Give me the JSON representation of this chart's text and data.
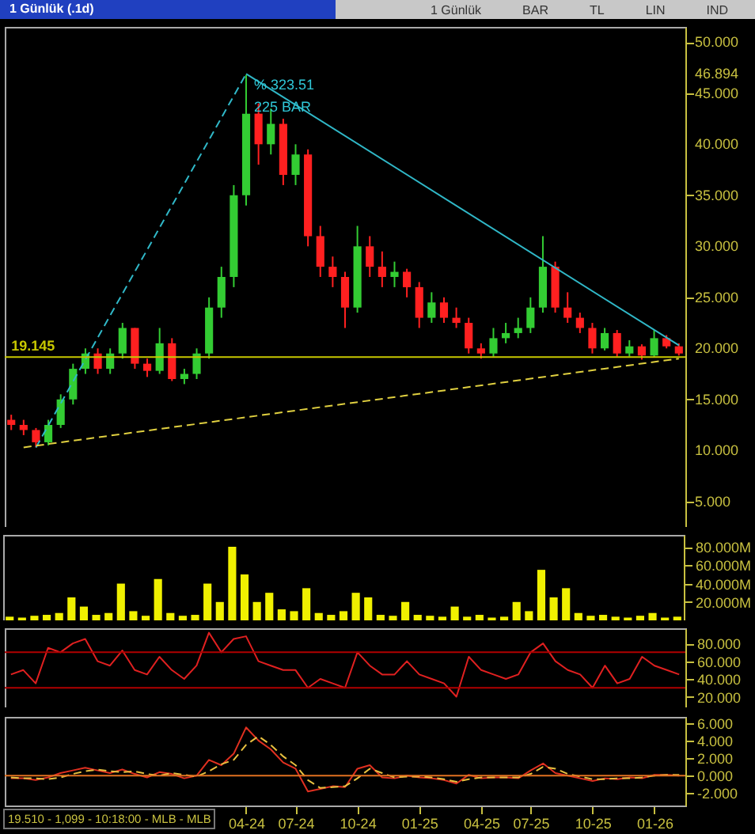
{
  "chart_data": [
    {
      "type": "candlestick",
      "title": "1 Günlük (.1d)",
      "tick_labels": "y",
      "categories": [
        null,
        null,
        null,
        null,
        null,
        null,
        null,
        null,
        null,
        null,
        null,
        null,
        null,
        null,
        null,
        null,
        null,
        null,
        null,
        null,
        null,
        null,
        null,
        null,
        null,
        null,
        null,
        null,
        null,
        null,
        null,
        null,
        null,
        null,
        null,
        null,
        null,
        null,
        null,
        null,
        null,
        null,
        null,
        null,
        null,
        null,
        null,
        null,
        null,
        null,
        null,
        null,
        null,
        null,
        null
      ],
      "ohlc": [
        [
          13,
          13.5,
          12,
          12.5
        ],
        [
          12.5,
          13,
          11.5,
          12
        ],
        [
          12,
          12.2,
          10.3,
          10.8
        ],
        [
          10.8,
          13,
          10.5,
          12.5
        ],
        [
          12.5,
          15.5,
          12.2,
          15
        ],
        [
          15,
          18.5,
          14.5,
          18
        ],
        [
          18,
          20,
          17.5,
          19.5
        ],
        [
          19.5,
          20,
          17.5,
          18
        ],
        [
          18,
          20,
          17.5,
          19.5
        ],
        [
          19.5,
          22.5,
          19,
          22
        ],
        [
          22,
          22,
          18,
          18.5
        ],
        [
          18.5,
          19,
          17.2,
          17.8
        ],
        [
          17.8,
          22,
          17.5,
          20.5
        ],
        [
          20.5,
          21,
          16.8,
          17
        ],
        [
          17,
          18,
          16.5,
          17.5
        ],
        [
          17.5,
          20,
          17,
          19.5
        ],
        [
          19.5,
          25,
          19,
          24
        ],
        [
          24,
          28,
          23,
          27
        ],
        [
          27,
          36,
          26,
          35
        ],
        [
          35,
          46.8,
          34,
          43
        ],
        [
          43,
          44,
          38,
          40
        ],
        [
          40,
          43.5,
          39,
          42
        ],
        [
          42,
          42.5,
          36,
          37
        ],
        [
          37,
          40,
          36,
          39
        ],
        [
          39,
          39.5,
          30,
          31
        ],
        [
          31,
          32,
          27,
          28
        ],
        [
          28,
          29,
          26,
          27
        ],
        [
          27,
          27.5,
          22,
          24
        ],
        [
          24,
          32,
          23.5,
          30
        ],
        [
          30,
          31,
          27,
          28
        ],
        [
          28,
          29.5,
          26,
          27
        ],
        [
          27,
          28.5,
          26,
          27.5
        ],
        [
          27.5,
          27.8,
          25,
          26
        ],
        [
          26,
          26.5,
          22,
          23
        ],
        [
          23,
          25.5,
          22.5,
          24.5
        ],
        [
          24.5,
          25,
          22.5,
          23
        ],
        [
          23,
          24,
          22,
          22.5
        ],
        [
          22.5,
          23,
          19.5,
          20
        ],
        [
          20,
          20.5,
          19,
          19.5
        ],
        [
          19.5,
          22,
          19.2,
          21
        ],
        [
          21,
          22.5,
          20.5,
          21.5
        ],
        [
          21.5,
          23,
          21,
          22
        ],
        [
          22,
          25,
          21.5,
          24
        ],
        [
          24,
          31,
          23.5,
          28
        ],
        [
          28,
          28.5,
          23.5,
          24
        ],
        [
          24,
          25.5,
          22.5,
          23
        ],
        [
          23,
          23.5,
          21.5,
          22
        ],
        [
          22,
          22.5,
          19.5,
          20
        ],
        [
          20,
          22,
          19.8,
          21.5
        ],
        [
          21.5,
          21.8,
          19.2,
          19.5
        ],
        [
          19.5,
          20.8,
          19.2,
          20.2
        ],
        [
          20.2,
          20.4,
          18.9,
          19.3
        ],
        [
          19.3,
          21.8,
          19.1,
          21
        ],
        [
          21,
          21.3,
          20,
          20.2
        ],
        [
          20.2,
          20.5,
          19.3,
          19.5
        ]
      ],
      "colors": [
        "#ff2020",
        "#ff2020",
        "#ff2020",
        "#33cc33",
        "#33cc33",
        "#33cc33",
        "#33cc33",
        "#ff2020",
        "#33cc33",
        "#33cc33",
        "#ff2020",
        "#ff2020",
        "#33cc33",
        "#ff2020",
        "#33cc33",
        "#33cc33",
        "#33cc33",
        "#33cc33",
        "#33cc33",
        "#33cc33",
        "#ff2020",
        "#33cc33",
        "#ff2020",
        "#33cc33",
        "#ff2020",
        "#ff2020",
        "#ff2020",
        "#ff2020",
        "#33cc33",
        "#ff2020",
        "#ff2020",
        "#33cc33",
        "#ff2020",
        "#ff2020",
        "#33cc33",
        "#ff2020",
        "#ff2020",
        "#ff2020",
        "#ff2020",
        "#33cc33",
        "#33cc33",
        "#33cc33",
        "#33cc33",
        "#33cc33",
        "#ff2020",
        "#ff2020",
        "#ff2020",
        "#ff2020",
        "#33cc33",
        "#ff2020",
        "#33cc33",
        "#ff2020",
        "#33cc33",
        "#ff2020",
        "#ff2020"
      ],
      "series": [
        {
          "type": "line",
          "color": "#30b8c8",
          "line_style": "dashed",
          "values": [
            null,
            null,
            10.3,
            null,
            null,
            null,
            null,
            null,
            null,
            null,
            null,
            null,
            null,
            null,
            null,
            null,
            null,
            null,
            null,
            46.9,
            null,
            null,
            null,
            null,
            null,
            null,
            null,
            null,
            null,
            null,
            null,
            null,
            null,
            null,
            null,
            null,
            null,
            null,
            null,
            null,
            null,
            null,
            null,
            null,
            null,
            null,
            null,
            null,
            null,
            null,
            null,
            null,
            null,
            null,
            null
          ]
        },
        {
          "type": "line",
          "color": "#30b8c8",
          "line_style": "solid",
          "values": [
            null,
            null,
            null,
            null,
            null,
            null,
            null,
            null,
            null,
            null,
            null,
            null,
            null,
            null,
            null,
            null,
            null,
            null,
            null,
            46.9,
            null,
            null,
            null,
            null,
            null,
            null,
            null,
            null,
            null,
            null,
            null,
            null,
            null,
            null,
            null,
            null,
            null,
            null,
            null,
            null,
            null,
            null,
            null,
            null,
            null,
            null,
            null,
            null,
            null,
            null,
            null,
            null,
            null,
            null,
            20.3
          ]
        },
        {
          "type": "line",
          "color": "#e0d040",
          "line_style": "dashed",
          "values": [
            null,
            10.3,
            null,
            null,
            null,
            null,
            null,
            null,
            null,
            null,
            null,
            null,
            null,
            null,
            null,
            null,
            null,
            null,
            null,
            null,
            null,
            null,
            null,
            null,
            null,
            null,
            null,
            null,
            null,
            null,
            null,
            null,
            null,
            null,
            null,
            null,
            null,
            null,
            null,
            null,
            null,
            null,
            null,
            null,
            null,
            null,
            null,
            null,
            null,
            null,
            null,
            null,
            null,
            null,
            19.0
          ]
        }
      ],
      "ref_lines": [
        {
          "axis": "y",
          "value": 19.145,
          "label": "19.145",
          "color": "#c8c800"
        }
      ],
      "annotations": [
        "% 323.51",
        "225 BAR"
      ],
      "ylim": [
        2.5,
        51.5
      ],
      "yticks": [
        {
          "value": 5,
          "label": "5.000"
        },
        {
          "value": 10,
          "label": "10.000"
        },
        {
          "value": 15,
          "label": "15.000"
        },
        {
          "value": 20,
          "label": "20.000"
        },
        {
          "value": 25,
          "label": "25.000"
        },
        {
          "value": 30,
          "label": "30.000"
        },
        {
          "value": 35,
          "label": "35.000"
        },
        {
          "value": 40,
          "label": "40.000"
        },
        {
          "value": 45,
          "label": "45.000"
        },
        {
          "value": 46.894,
          "label": "46.894"
        },
        {
          "value": 50,
          "label": "50.000"
        }
      ]
    },
    {
      "type": "bar",
      "tick_labels": "y",
      "categories": [
        null,
        null,
        null,
        null,
        null,
        null,
        null,
        null,
        null,
        null,
        null,
        null,
        null,
        null,
        null,
        null,
        null,
        null,
        null,
        null,
        null,
        null,
        null,
        null,
        null,
        null,
        null,
        null,
        null,
        null,
        null,
        null,
        null,
        null,
        null,
        null,
        null,
        null,
        null,
        null,
        null,
        null,
        null,
        null,
        null,
        null,
        null,
        null,
        null,
        null,
        null,
        null,
        null,
        null,
        null
      ],
      "series": [
        {
          "color": "#f0f000",
          "values": [
            4000000,
            3000000,
            5000000,
            6000000,
            8000000,
            25000000,
            15000000,
            6000000,
            8000000,
            40000000,
            10000000,
            5000000,
            45000000,
            8000000,
            5000000,
            6000000,
            40000000,
            20000000,
            80000000,
            50000000,
            20000000,
            30000000,
            12000000,
            10000000,
            35000000,
            8000000,
            6000000,
            10000000,
            30000000,
            25000000,
            6000000,
            5000000,
            20000000,
            6000000,
            5000000,
            4000000,
            15000000,
            4000000,
            6000000,
            3000000,
            4000000,
            20000000,
            10000000,
            55000000,
            25000000,
            35000000,
            8000000,
            5000000,
            6000000,
            4000000,
            3000000,
            5000000,
            8000000,
            3000000,
            4000000
          ]
        }
      ],
      "ylim": [
        0,
        93000000
      ],
      "yticks": [
        {
          "value": 20000000,
          "label": "20.000M"
        },
        {
          "value": 40000000,
          "label": "40.000M"
        },
        {
          "value": 60000000,
          "label": "60.000M"
        },
        {
          "value": 80000000,
          "label": "80.000M"
        }
      ]
    },
    {
      "type": "line",
      "tick_labels": "y",
      "categories": [
        null,
        null,
        null,
        null,
        null,
        null,
        null,
        null,
        null,
        null,
        null,
        null,
        null,
        null,
        null,
        null,
        null,
        null,
        null,
        null,
        null,
        null,
        null,
        null,
        null,
        null,
        null,
        null,
        null,
        null,
        null,
        null,
        null,
        null,
        null,
        null,
        null,
        null,
        null,
        null,
        null,
        null,
        null,
        null,
        null,
        null,
        null,
        null,
        null,
        null,
        null,
        null,
        null,
        null,
        null
      ],
      "series": [
        {
          "color": "#e02020",
          "values": [
            45,
            50,
            35,
            75,
            70,
            80,
            85,
            60,
            55,
            72,
            50,
            45,
            65,
            50,
            40,
            55,
            92,
            70,
            85,
            88,
            60,
            55,
            50,
            50,
            30,
            40,
            35,
            30,
            70,
            55,
            45,
            45,
            60,
            45,
            40,
            35,
            20,
            65,
            50,
            45,
            40,
            45,
            70,
            80,
            60,
            50,
            45,
            30,
            55,
            35,
            40,
            65,
            55,
            50,
            45
          ]
        }
      ],
      "ref_lines": [
        {
          "axis": "y",
          "value": 70,
          "color": "#b00000"
        },
        {
          "axis": "y",
          "value": 30,
          "color": "#b00000"
        }
      ],
      "ylim": [
        8,
        97
      ],
      "yticks": [
        {
          "value": 20,
          "label": "20.000"
        },
        {
          "value": 40,
          "label": "40.000"
        },
        {
          "value": 60,
          "label": "60.000"
        },
        {
          "value": 80,
          "label": "80.000"
        }
      ]
    },
    {
      "type": "line",
      "categories": [
        null,
        null,
        null,
        null,
        null,
        null,
        null,
        null,
        null,
        null,
        null,
        null,
        null,
        null,
        null,
        null,
        null,
        null,
        null,
        "04-24",
        null,
        null,
        null,
        "07-24",
        null,
        null,
        null,
        null,
        "10-24",
        null,
        null,
        null,
        null,
        "01-25",
        null,
        null,
        null,
        null,
        "04-25",
        null,
        null,
        null,
        "07-25",
        null,
        null,
        null,
        null,
        "10-25",
        null,
        null,
        null,
        null,
        "01-26",
        null,
        null
      ],
      "series": [
        {
          "color": "#e03020",
          "line_style": "solid",
          "values": [
            -0.3,
            -0.3,
            -0.5,
            -0.2,
            0.3,
            0.6,
            0.9,
            0.6,
            0.3,
            0.7,
            0.2,
            -0.2,
            0.4,
            0.2,
            -0.3,
            0,
            1.8,
            1.2,
            2.5,
            5.5,
            4,
            3,
            1.5,
            0.8,
            -1.8,
            -1.5,
            -1.2,
            -1.3,
            0.8,
            1.2,
            -0.2,
            -0.3,
            0,
            -0.2,
            -0.3,
            -0.5,
            -0.9,
            0.1,
            -0.3,
            -0.2,
            -0.2,
            -0.3,
            0.6,
            1.4,
            0.3,
            0,
            -0.3,
            -0.6,
            -0.3,
            -0.4,
            -0.2,
            -0.3,
            0.1,
            0.1,
            0
          ]
        },
        {
          "color": "#e8c040",
          "line_style": "dashed",
          "values": [
            -0.2,
            -0.3,
            -0.3,
            -0.4,
            -0.2,
            0.2,
            0.5,
            0.7,
            0.5,
            0.4,
            0.5,
            0.2,
            0,
            0.3,
            0.1,
            -0.1,
            0.5,
            1.3,
            1.8,
            3.5,
            4.5,
            3.5,
            2.2,
            1.2,
            -0.5,
            -1.4,
            -1.3,
            -1.2,
            -0.3,
            0.8,
            0.3,
            -0.2,
            -0.1,
            -0.1,
            -0.2,
            -0.4,
            -0.7,
            -0.4,
            -0.2,
            -0.2,
            -0.2,
            -0.2,
            0.2,
            1.0,
            0.8,
            0.2,
            -0.1,
            -0.4,
            -0.4,
            -0.3,
            -0.3,
            -0.2,
            0,
            0.1,
            0.1
          ]
        }
      ],
      "ref_lines": [
        {
          "axis": "y",
          "value": 0,
          "color": "#e07020"
        }
      ],
      "annotations": [
        "19.510 - 1,099 - 10:18:00 - MLB - MLB"
      ],
      "ylim": [
        -3.4,
        6.7
      ],
      "yticks": [
        {
          "value": -2,
          "label": "-2.000"
        },
        {
          "value": 0,
          "label": "0.000"
        },
        {
          "value": 2,
          "label": "2.000"
        },
        {
          "value": 4,
          "label": "4.000"
        },
        {
          "value": 6,
          "label": "6.000"
        }
      ]
    },
    {
      "type": "other",
      "annotations": [
        "1 Günlük",
        "BAR",
        "TL",
        "LIN",
        "IND"
      ]
    }
  ]
}
